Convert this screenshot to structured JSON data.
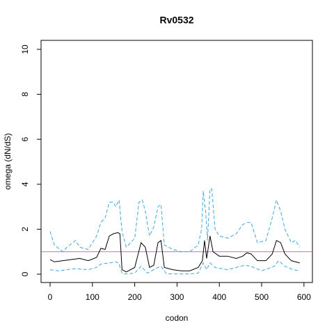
{
  "chart_data": {
    "type": "line",
    "title": "Rv0532",
    "xlabel": "codon",
    "ylabel": "omega (dN/dS)",
    "xlim": [
      -21.4,
      620
    ],
    "ylim": [
      -0.37,
      10.4
    ],
    "xticks": [
      0,
      100,
      200,
      300,
      400,
      500,
      600
    ],
    "yticks": [
      0,
      2,
      4,
      6,
      8,
      10
    ],
    "hline": {
      "value": 1,
      "color": "#cc66cc"
    },
    "series": [
      {
        "color": "#000000",
        "dash": false,
        "x": [
          0,
          10,
          30,
          50,
          70,
          90,
          110,
          120,
          130,
          140,
          150,
          160,
          165,
          170,
          180,
          200,
          215,
          225,
          235,
          245,
          255,
          262,
          270,
          290,
          310,
          330,
          350,
          360,
          365,
          370,
          378,
          385,
          400,
          420,
          440,
          455,
          465,
          475,
          490,
          510,
          525,
          535,
          545,
          555,
          570,
          590
        ],
        "values": [
          0.65,
          0.55,
          0.6,
          0.65,
          0.7,
          0.6,
          0.75,
          1.15,
          1.1,
          1.7,
          1.8,
          1.85,
          1.8,
          0.2,
          0.1,
          0.3,
          1.4,
          1.2,
          0.3,
          0.4,
          1.4,
          1.5,
          0.3,
          0.2,
          0.15,
          0.15,
          0.3,
          0.6,
          1.5,
          0.7,
          1.7,
          1.0,
          0.8,
          0.8,
          0.7,
          0.8,
          0.95,
          0.9,
          0.6,
          0.6,
          0.9,
          1.5,
          1.4,
          0.9,
          0.6,
          0.5
        ]
      },
      {
        "color": "#3aa6e0",
        "dash": true,
        "x": [
          0,
          10,
          30,
          40,
          60,
          70,
          90,
          110,
          120,
          130,
          140,
          150,
          155,
          163,
          170,
          180,
          200,
          210,
          218,
          225,
          235,
          245,
          255,
          262,
          270,
          290,
          310,
          330,
          350,
          358,
          362,
          368,
          372,
          378,
          382,
          390,
          400,
          420,
          440,
          455,
          465,
          475,
          490,
          510,
          525,
          535,
          545,
          555,
          570,
          580,
          590
        ],
        "values": [
          1.9,
          1.3,
          1.0,
          1.2,
          1.5,
          1.2,
          1.1,
          1.7,
          2.3,
          2.5,
          3.2,
          3.2,
          3.0,
          3.3,
          1.9,
          1.2,
          1.6,
          3.2,
          3.3,
          2.8,
          1.7,
          2.1,
          3.0,
          3.1,
          1.3,
          1.1,
          1.0,
          1.0,
          1.3,
          2.0,
          3.7,
          2.7,
          1.5,
          3.8,
          3.8,
          2.0,
          1.7,
          1.6,
          1.8,
          2.2,
          2.3,
          2.3,
          1.4,
          1.5,
          2.5,
          3.3,
          2.8,
          2.0,
          1.4,
          1.5,
          1.2
        ]
      },
      {
        "color": "#3aa6e0",
        "dash": true,
        "x": [
          0,
          20,
          40,
          60,
          90,
          110,
          120,
          140,
          155,
          162,
          170,
          180,
          200,
          215,
          230,
          255,
          262,
          275,
          300,
          330,
          350,
          362,
          370,
          378,
          390,
          420,
          460,
          475,
          500,
          530,
          540,
          555,
          575,
          590
        ],
        "values": [
          0.2,
          0.15,
          0.2,
          0.25,
          0.2,
          0.3,
          0.45,
          0.5,
          0.55,
          0.5,
          0.05,
          0.01,
          0.05,
          0.35,
          0.05,
          0.3,
          0.35,
          0.02,
          0.01,
          0.01,
          0.05,
          0.5,
          0.2,
          0.5,
          0.3,
          0.2,
          0.4,
          0.35,
          0.15,
          0.35,
          0.6,
          0.35,
          0.2,
          0.15
        ]
      }
    ]
  }
}
